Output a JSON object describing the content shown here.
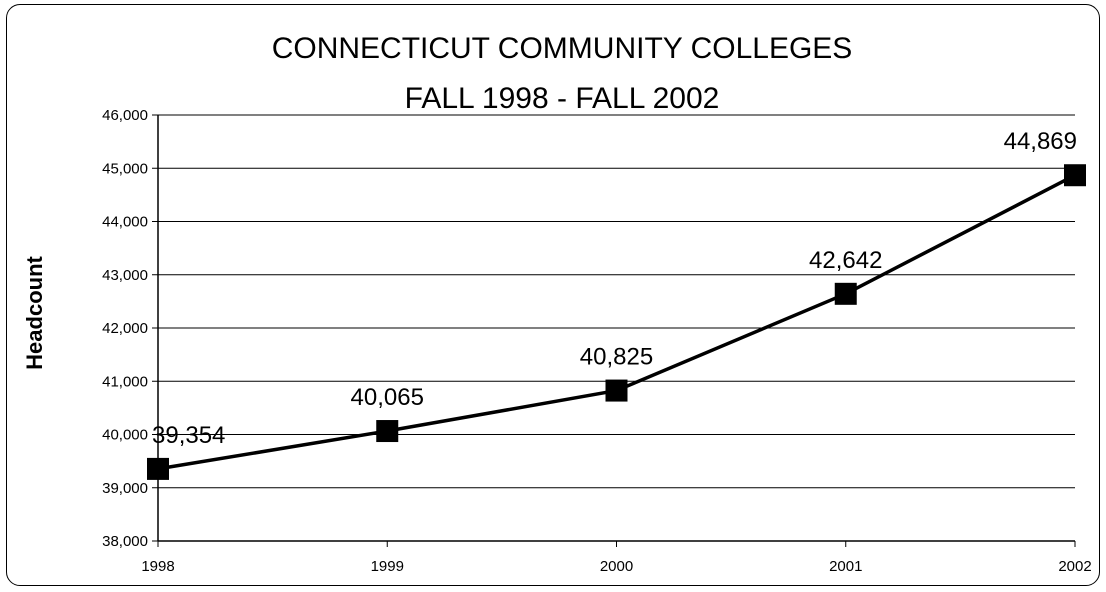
{
  "chart_data": {
    "type": "line",
    "title": [
      "CONNECTICUT COMMUNITY COLLEGES",
      "FALL 1998 - FALL 2002"
    ],
    "xlabel": "",
    "ylabel": "Headcount",
    "categories": [
      "1998",
      "1999",
      "2000",
      "2001",
      "2002"
    ],
    "values": [
      39354,
      40065,
      40825,
      42642,
      44869
    ],
    "data_labels": [
      "39,354",
      "40,065",
      "40,825",
      "42,642",
      "44,869"
    ],
    "ylim": [
      38000,
      46000
    ],
    "yticks": [
      38000,
      39000,
      40000,
      41000,
      42000,
      43000,
      44000,
      45000,
      46000
    ],
    "ytick_labels": [
      "38,000",
      "39,000",
      "40,000",
      "41,000",
      "42,000",
      "43,000",
      "44,000",
      "45,000",
      "46,000"
    ],
    "grid": true,
    "legend": "none",
    "marker": "square",
    "colors": {
      "line": "#000000",
      "marker": "#000000",
      "grid": "#000000"
    }
  }
}
